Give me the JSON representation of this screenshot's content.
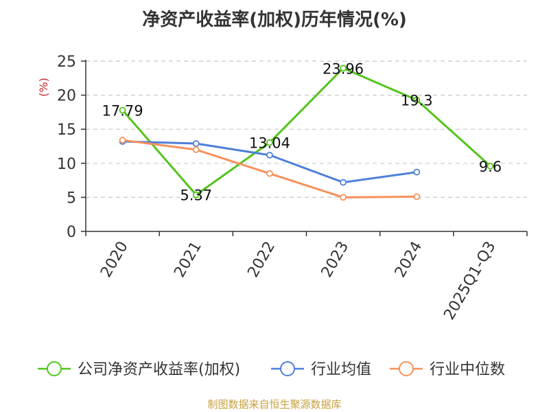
{
  "chart_data": {
    "type": "line",
    "title": "净资产收益率(加权)历年情况(%)",
    "ylabel": "(%)",
    "xlabel": "",
    "categories": [
      "2020",
      "2021",
      "2022",
      "2023",
      "2024",
      "2025Q1-Q3"
    ],
    "yticks": [
      "0",
      "5",
      "10",
      "15",
      "20",
      "25"
    ],
    "ylim": [
      0,
      25
    ],
    "grid": true,
    "legend_position": "bottom",
    "series": [
      {
        "name": "公司净资产收益率(加权)",
        "color": "#52c41a",
        "values": [
          17.79,
          5.37,
          13.04,
          23.96,
          19.3,
          9.6
        ],
        "labels": [
          "17.79",
          "5.37",
          "13.04",
          "23.96",
          "19.3",
          "9.6"
        ]
      },
      {
        "name": "行业均值",
        "color": "#4e7fd8",
        "values": [
          13.2,
          12.9,
          11.2,
          7.2,
          8.7,
          null
        ]
      },
      {
        "name": "行业中位数",
        "color": "#f7905a",
        "values": [
          13.4,
          12.0,
          8.5,
          5.0,
          5.1,
          null
        ]
      }
    ]
  },
  "source": "制图数据来自恒生聚源数据库"
}
